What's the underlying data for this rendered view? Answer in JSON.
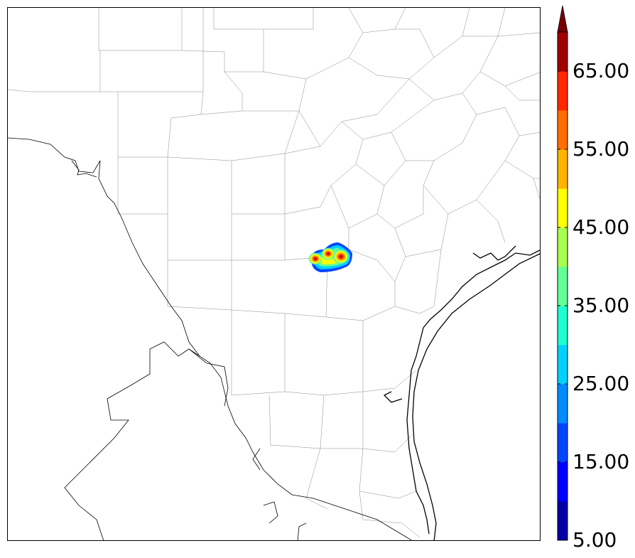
{
  "colorbar": {
    "labels": [
      "65.00",
      "55.00",
      "45.00",
      "35.00",
      "25.00",
      "15.00",
      "5.00"
    ],
    "label_values": [
      65,
      55,
      45,
      35,
      25,
      15,
      5
    ],
    "min": 5,
    "max": 70,
    "step": 5,
    "extend": "max",
    "colors": [
      "#0000a6",
      "#0000ff",
      "#0046ff",
      "#008cff",
      "#00d2ff",
      "#1effd0",
      "#64ff96",
      "#a8ff50",
      "#ffff00",
      "#ffb400",
      "#ff6e00",
      "#ff2800",
      "#a00000"
    ],
    "extend_color": "#780000"
  },
  "storm": {
    "max_value": 65,
    "cells": 3
  }
}
